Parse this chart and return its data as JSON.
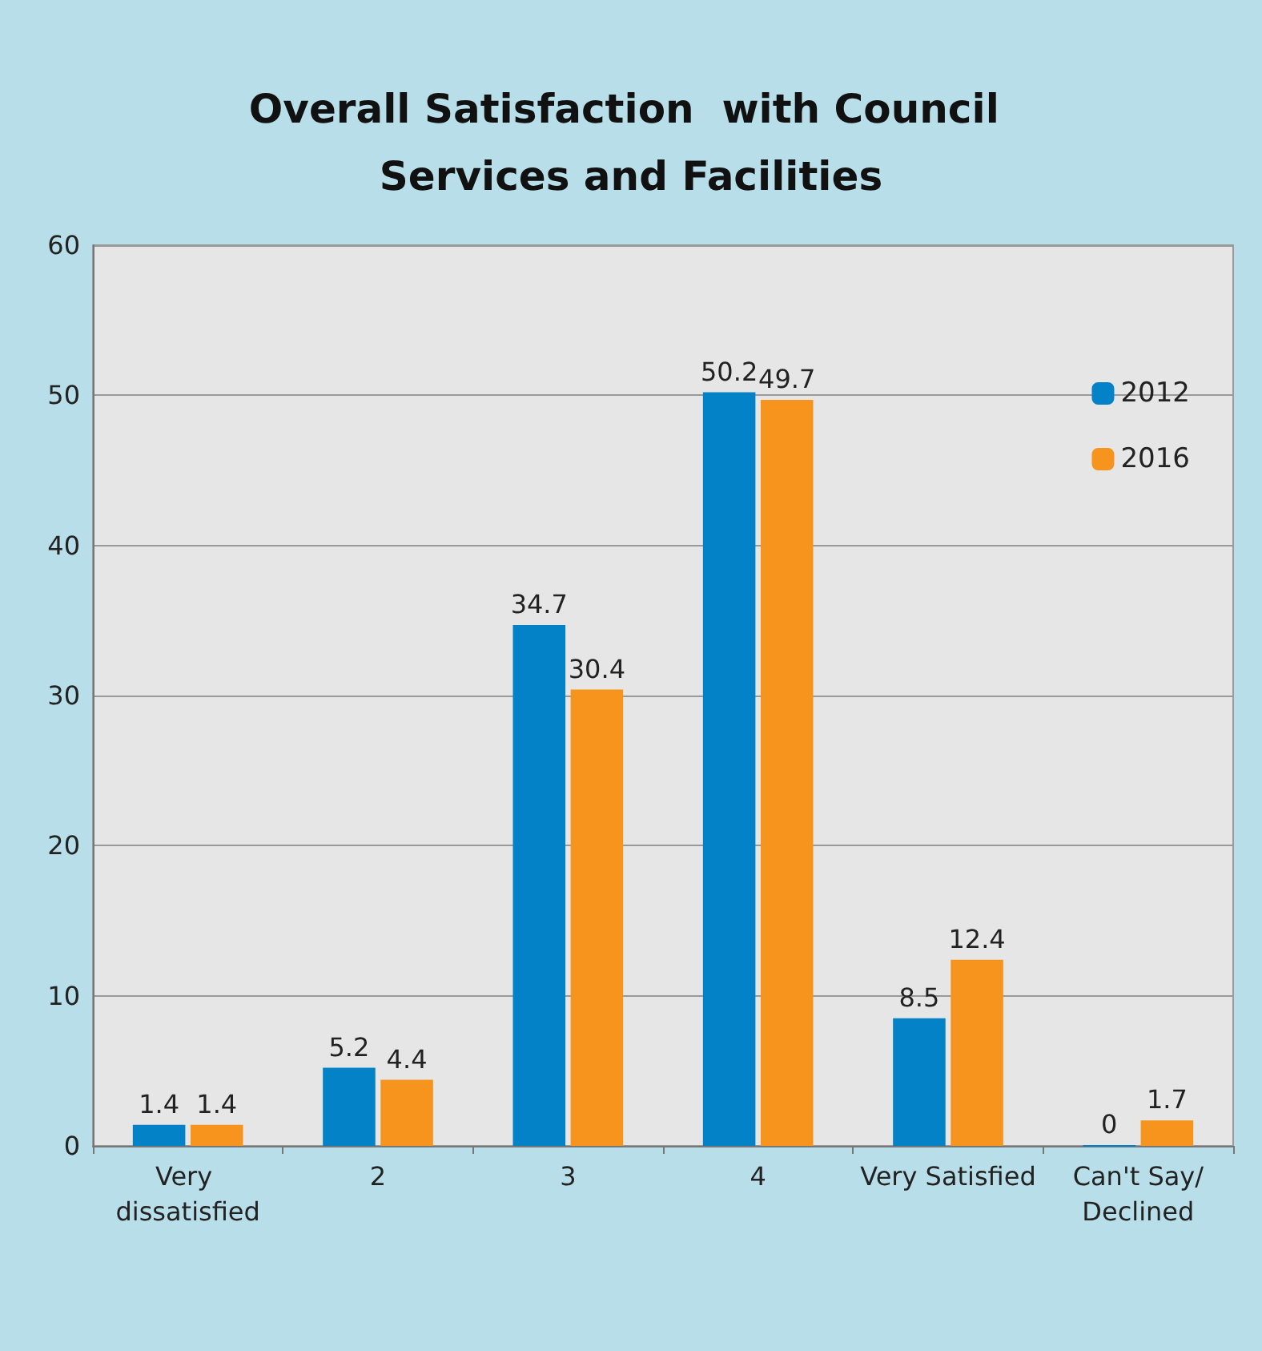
{
  "chart_data": {
    "type": "bar",
    "title": "Overall Satisfaction  with Council Services and Facilities",
    "categories": [
      "Very dissatisfied",
      "2",
      "3",
      "4",
      "Very Satisfied",
      "Can't Say/Declined"
    ],
    "series": [
      {
        "name": "2012",
        "color": "#0482c8",
        "values": [
          1.4,
          5.2,
          34.7,
          50.2,
          8.5,
          0
        ]
      },
      {
        "name": "2016",
        "color": "#f7941d",
        "values": [
          1.4,
          4.4,
          30.4,
          49.7,
          12.4,
          1.7
        ]
      }
    ],
    "ylim": [
      0,
      60
    ],
    "yticks": [
      0,
      10,
      20,
      30,
      40,
      50,
      60
    ],
    "grid": "y",
    "legend": "top right",
    "data_labels": true
  }
}
